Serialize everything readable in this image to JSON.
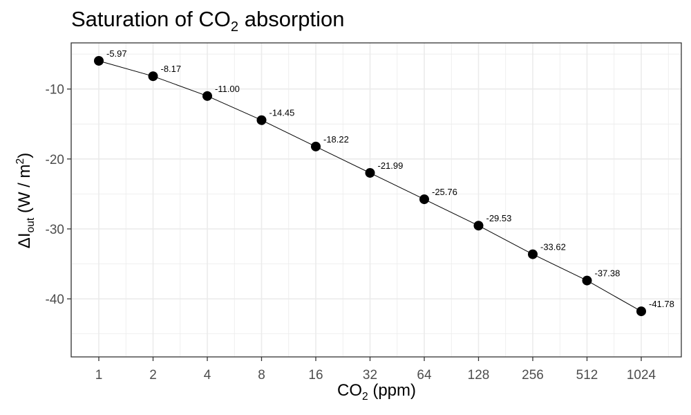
{
  "chart_data": {
    "type": "line",
    "title": {
      "main": "Saturation of CO",
      "sub": "2",
      "rest": " absorption"
    },
    "xlabel": {
      "main": "CO",
      "sub": "2",
      "rest": " (ppm)"
    },
    "ylabel": {
      "main": "ΔI",
      "sub": "out",
      "mid": " (W / m",
      "sup": "2",
      "rest": ")"
    },
    "x_scale": "log2",
    "x": [
      1,
      2,
      4,
      8,
      16,
      32,
      64,
      128,
      256,
      512,
      1024
    ],
    "x_tick_labels": [
      "1",
      "2",
      "4",
      "8",
      "16",
      "32",
      "64",
      "128",
      "256",
      "512",
      "1024"
    ],
    "y": [
      -5.97,
      -8.17,
      -11.0,
      -14.45,
      -18.22,
      -21.99,
      -25.76,
      -29.53,
      -33.62,
      -37.38,
      -41.78
    ],
    "data_labels": [
      "-5.97",
      "-8.17",
      "-11.00",
      "-14.45",
      "-18.22",
      "-21.99",
      "-25.76",
      "-29.53",
      "-33.62",
      "-37.38",
      "-41.78"
    ],
    "y_ticks": [
      -10,
      -20,
      -30,
      -40
    ],
    "y_tick_labels": [
      "-10",
      "-20",
      "-30",
      "-40"
    ],
    "ylim": [
      -48.3,
      -3.4
    ],
    "grid": true,
    "legend": "none",
    "colors": {
      "line": "#000000",
      "points": "#000000",
      "grid": "#ebebeb",
      "tick_text": "#4d4d4d"
    }
  }
}
